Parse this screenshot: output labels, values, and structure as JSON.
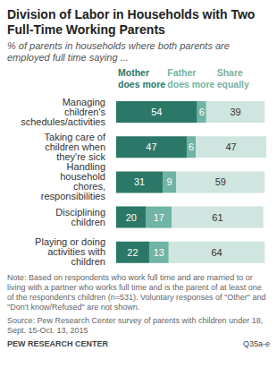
{
  "chart_data": {
    "type": "bar",
    "title": "Division of Labor in Households with Two Full-Time Working Parents",
    "subtitle": "% of parents in households where both parents are employed full time saying ...",
    "categories": [
      "Managing children's schedules/activities",
      "Taking care of children when they're sick",
      "Handling household chores, responsibilities",
      "Disciplining children",
      "Playing or doing activities with children"
    ],
    "series": [
      {
        "name": "Mother does more",
        "color": "#2c7868",
        "values": [
          54,
          47,
          31,
          20,
          22
        ]
      },
      {
        "name": "Father does more",
        "color": "#6fb4a4",
        "values": [
          6,
          6,
          9,
          17,
          13
        ]
      },
      {
        "name": "Share equally",
        "color": "#cfe5df",
        "values": [
          39,
          47,
          59,
          61,
          64
        ]
      }
    ],
    "xlim": [
      0,
      100
    ],
    "orientation": "horizontal",
    "stacked": true,
    "data_labels": true,
    "legend": "top",
    "tick_labels": "y",
    "note": "Note: Based on respondents who work full time and are married to or living with a partner who works full time and is the parent of at least one of the respondent's children (n=531). Voluntary responses of \"Other\" and \"Don't know/Refused\" are not shown.",
    "source": "Source: Pew Research Center survey of parents with children under 18, Sept. 15-Oct. 13, 2015",
    "annotations": [
      "PEW RESEARCH CENTER",
      "Q35a-e"
    ]
  }
}
